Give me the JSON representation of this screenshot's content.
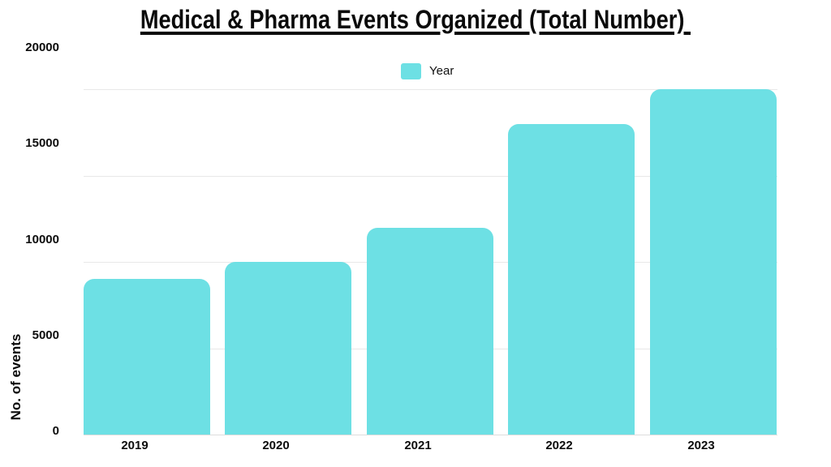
{
  "title": "Medical & Pharma Events Organized (Total Number) ",
  "legend": {
    "label": "Year",
    "swatch_color": "#6DE0E4"
  },
  "y_axis": {
    "title": "No. of events",
    "ticks": [
      0,
      5000,
      10000,
      15000,
      20000
    ]
  },
  "chart_data": {
    "type": "bar",
    "categories": [
      "2019",
      "2020",
      "2021",
      "2022",
      "2023"
    ],
    "values": [
      9000,
      10000,
      12000,
      18000,
      20000
    ],
    "title": "Medical & Pharma Events Organized (Total Number)",
    "xlabel": "",
    "ylabel": "No. of events",
    "ylim": [
      0,
      20000
    ],
    "grid": true,
    "gridline_values": [
      5000,
      10000,
      15000,
      20000
    ],
    "legend_entries": [
      "Year"
    ],
    "legend_position": "top-center",
    "bar_color": "#6DE0E4"
  },
  "colors": {
    "bar": "#6DE0E4",
    "text": "#0d0d0d",
    "gridline": "#e8e8e8",
    "background": "#ffffff"
  }
}
